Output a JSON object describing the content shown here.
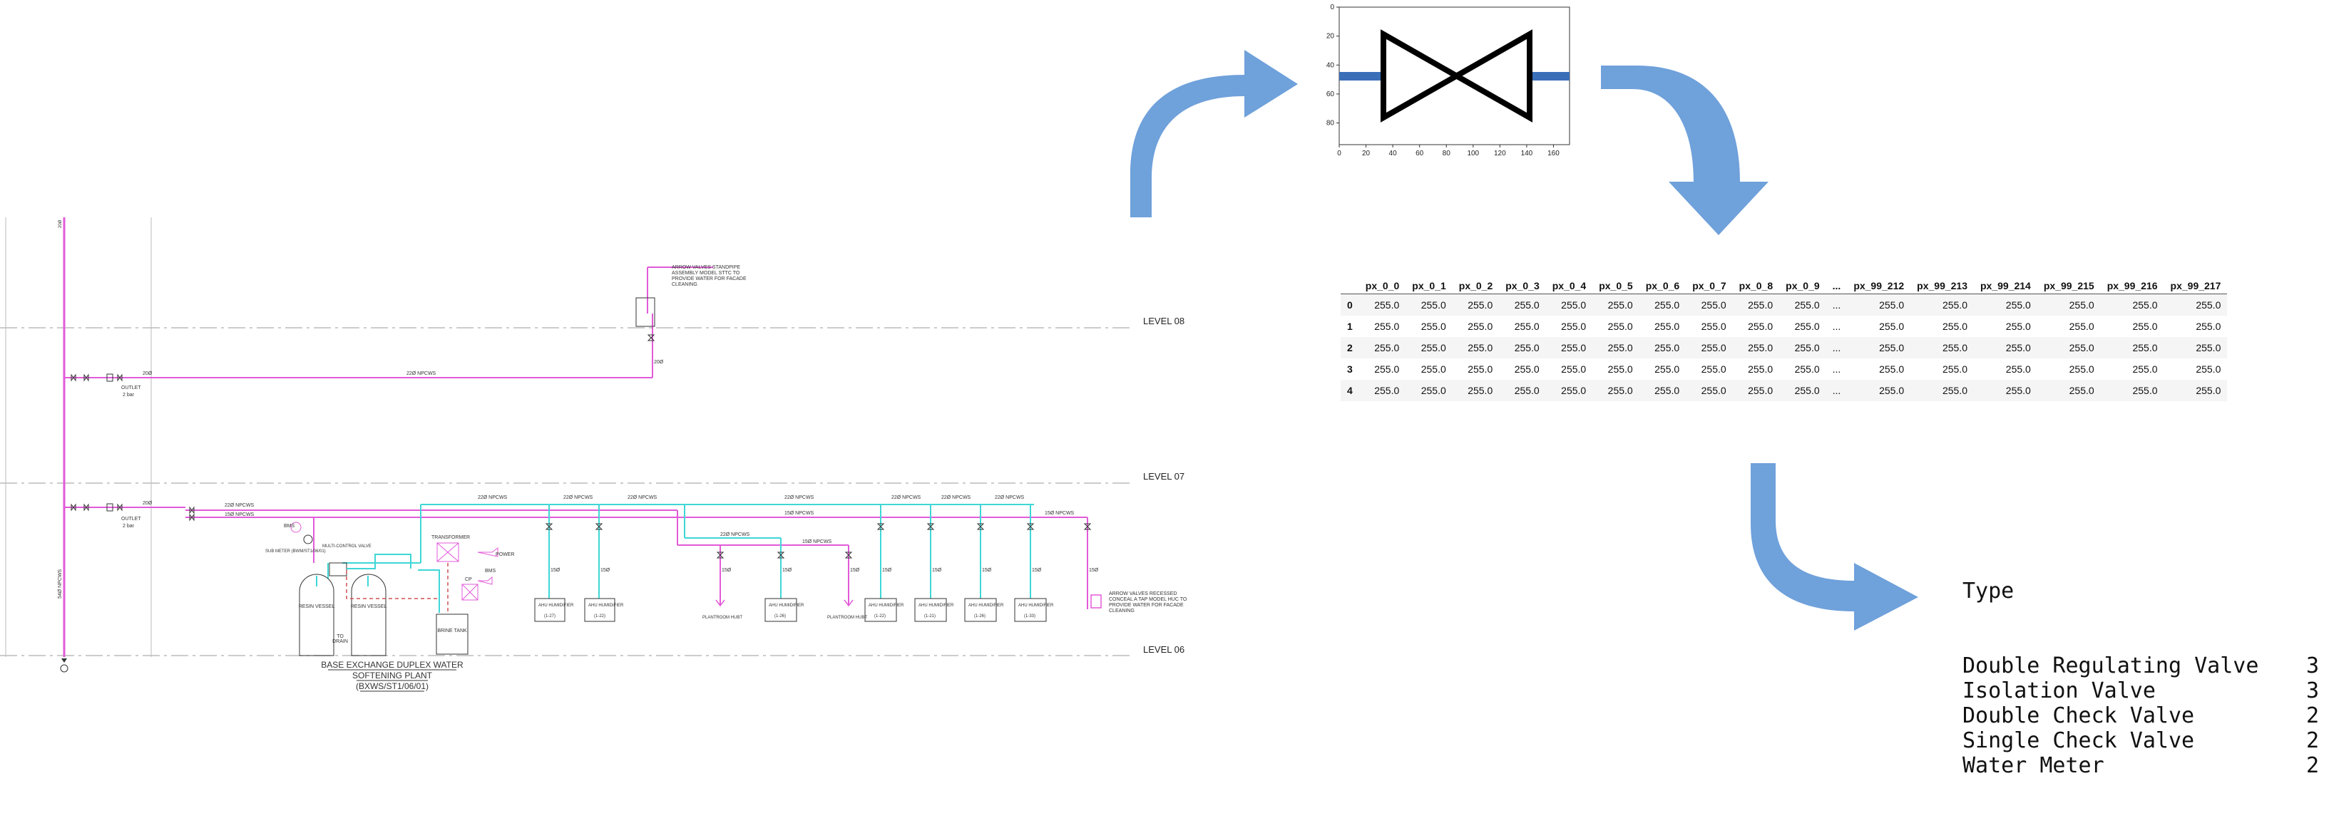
{
  "schematic": {
    "levels": [
      "LEVEL 08",
      "LEVEL 07",
      "LEVEL 06"
    ],
    "pipe_labels": {
      "main_08": "22Ø NPCWS",
      "branch_a": "22Ø NPCWS",
      "branch_b": "15Ø NPCWS",
      "riser": "54Ø NPCWS",
      "d20": "20Ø",
      "d15": "15Ø",
      "top_run": "22Ø NPCWS",
      "mid_run": "15Ø NPCWS"
    },
    "labels": {
      "top_note": "ARROW VALVES STANDPIPE ASSEMBLY MODEL STTC TO PROVIDE WATER FOR FACADE CLEANING",
      "right_note": "ARROW VALVES RECESSED CONCEAL A TAP MODEL HUC TO PROVIDE WATER FOR FACADE CLEANING",
      "outlet": "OUTLET",
      "pressure": "2 bar",
      "bms": "BMS",
      "sub_meter": "SUB METER (BWM/ST1/06/01)",
      "multi_control_valve": "MULTI-CONTROL VALVE",
      "transformer": "TRANSFORMER",
      "power": "POWER",
      "cp": "CP",
      "resin_vessel": "RESIN VESSEL",
      "to_drain": "TO DRAIN",
      "brine_tank": "BRINE TANK",
      "plantroom": "PLANTROOM HUBT",
      "ahu": "AHU HUMIDIFIER",
      "ahu_ids": [
        "(1-27)",
        "(1-22)",
        "(1-26)",
        "(1-22)",
        "(1-21)",
        "(1-26)",
        "(1-33)"
      ],
      "plant_title": "BASE EXCHANGE DUPLEX WATER",
      "plant_title2": "SOFTENING PLANT",
      "plant_code": "(BXWS/ST1/06/01)"
    }
  },
  "valve_plot": {
    "x_ticks": [
      "0",
      "20",
      "40",
      "60",
      "80",
      "100",
      "120",
      "140",
      "160"
    ],
    "y_ticks": [
      "0",
      "20",
      "40",
      "60",
      "80"
    ]
  },
  "table": {
    "columns": [
      "px_0_0",
      "px_0_1",
      "px_0_2",
      "px_0_3",
      "px_0_4",
      "px_0_5",
      "px_0_6",
      "px_0_7",
      "px_0_8",
      "px_0_9",
      "...",
      "px_99_212",
      "px_99_213",
      "px_99_214",
      "px_99_215",
      "px_99_216",
      "px_99_217"
    ],
    "rows": [
      {
        "index": "0",
        "cells": [
          "255.0",
          "255.0",
          "255.0",
          "255.0",
          "255.0",
          "255.0",
          "255.0",
          "255.0",
          "255.0",
          "255.0",
          "...",
          "255.0",
          "255.0",
          "255.0",
          "255.0",
          "255.0",
          "255.0"
        ]
      },
      {
        "index": "1",
        "cells": [
          "255.0",
          "255.0",
          "255.0",
          "255.0",
          "255.0",
          "255.0",
          "255.0",
          "255.0",
          "255.0",
          "255.0",
          "...",
          "255.0",
          "255.0",
          "255.0",
          "255.0",
          "255.0",
          "255.0"
        ]
      },
      {
        "index": "2",
        "cells": [
          "255.0",
          "255.0",
          "255.0",
          "255.0",
          "255.0",
          "255.0",
          "255.0",
          "255.0",
          "255.0",
          "255.0",
          "...",
          "255.0",
          "255.0",
          "255.0",
          "255.0",
          "255.0",
          "255.0"
        ]
      },
      {
        "index": "3",
        "cells": [
          "255.0",
          "255.0",
          "255.0",
          "255.0",
          "255.0",
          "255.0",
          "255.0",
          "255.0",
          "255.0",
          "255.0",
          "...",
          "255.0",
          "255.0",
          "255.0",
          "255.0",
          "255.0",
          "255.0"
        ]
      },
      {
        "index": "4",
        "cells": [
          "255.0",
          "255.0",
          "255.0",
          "255.0",
          "255.0",
          "255.0",
          "255.0",
          "255.0",
          "255.0",
          "255.0",
          "...",
          "255.0",
          "255.0",
          "255.0",
          "255.0",
          "255.0",
          "255.0"
        ]
      }
    ]
  },
  "counts": {
    "header": "Type",
    "items": [
      {
        "label": "Double Regulating Valve",
        "value": "3"
      },
      {
        "label": "Isolation Valve",
        "value": "3"
      },
      {
        "label": "Double Check Valve",
        "value": "2"
      },
      {
        "label": "Single Check Valve",
        "value": "2"
      },
      {
        "label": "Water Meter",
        "value": "2"
      }
    ]
  },
  "colors": {
    "arrow": "#6fa1db",
    "pipe_magenta": "#e25ad8",
    "pipe_cyan": "#3fd6d6",
    "valve_line": "#3a6fb8",
    "grid_line": "#bbbbbb"
  }
}
